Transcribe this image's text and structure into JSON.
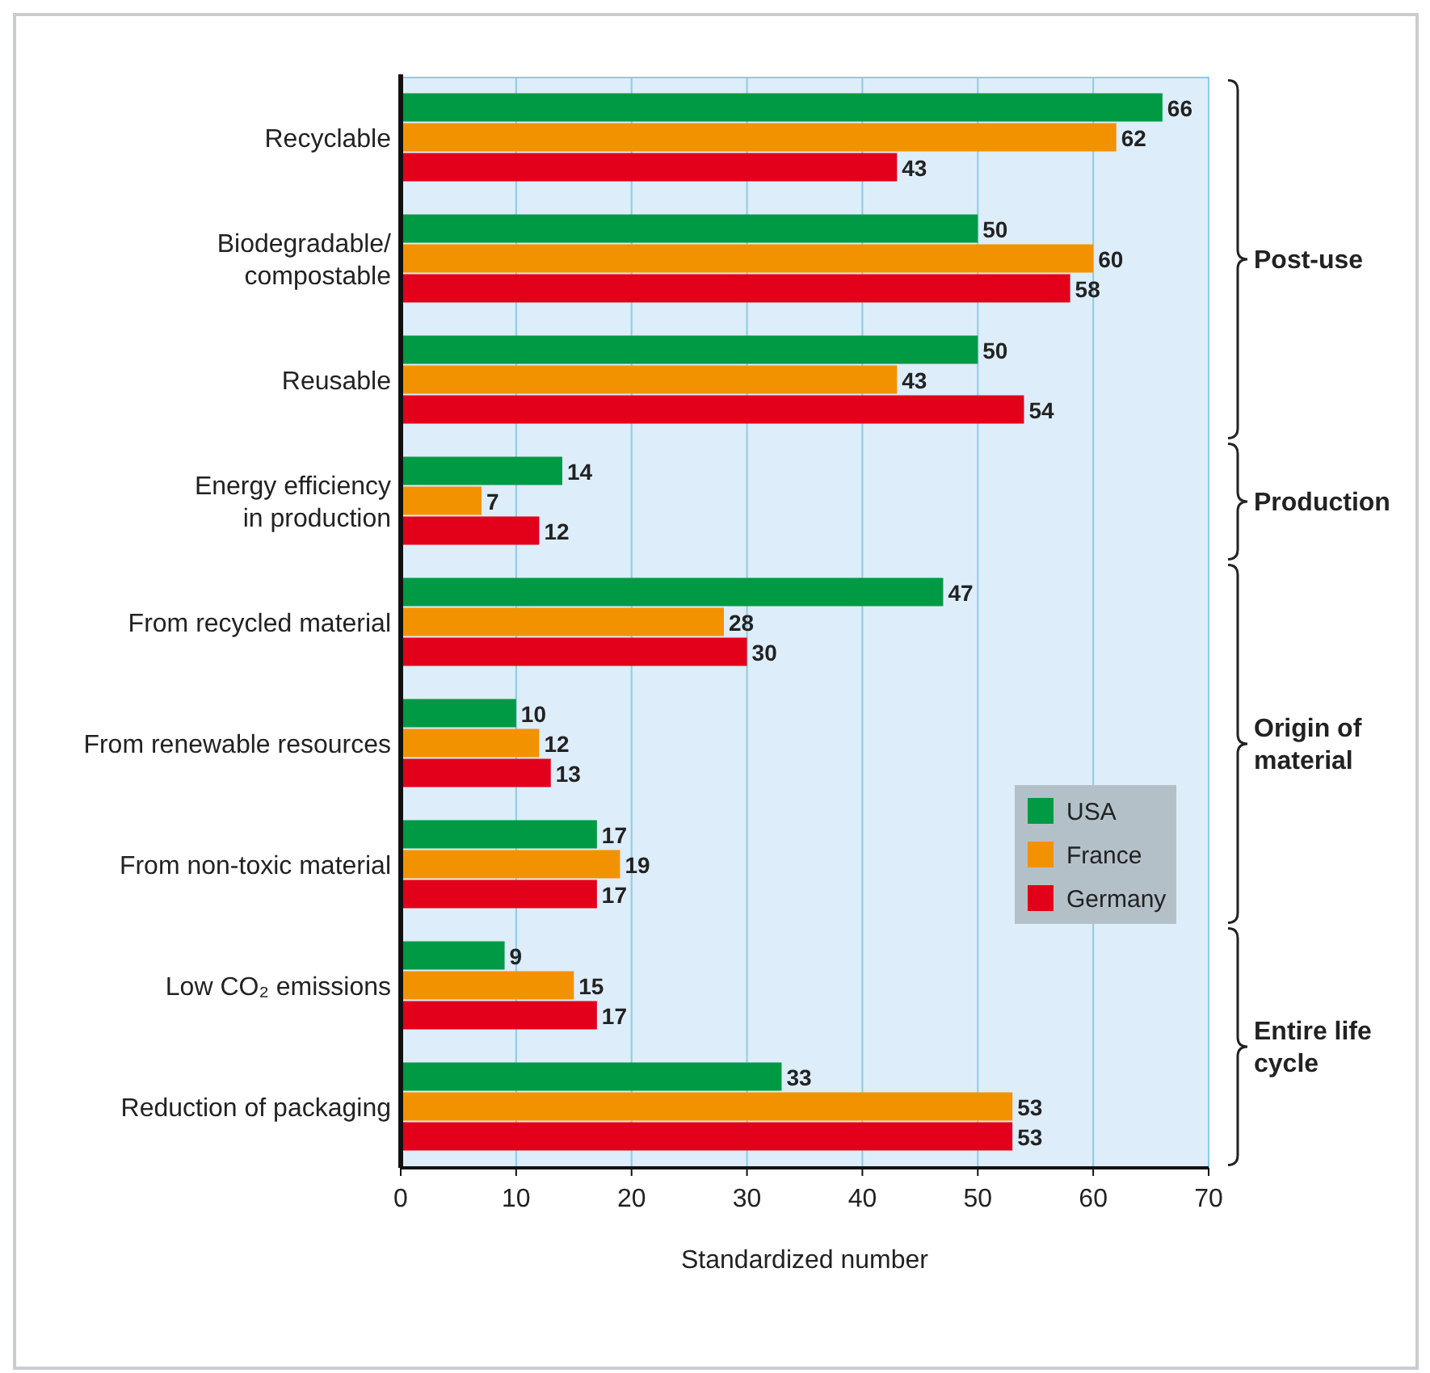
{
  "chart_data": {
    "type": "bar",
    "orientation": "horizontal",
    "xlabel": "Standardized number",
    "categories": [
      "Recyclable",
      "Biodegradable/\ncompostable",
      "Reusable",
      "Energy efficiency\nin production",
      "From recycled material",
      "From renewable resources",
      "From non-toxic material",
      "Low CO₂ emissions",
      "Reduction of packaging"
    ],
    "series": [
      {
        "name": "USA",
        "color": "#009a44",
        "values": [
          66,
          50,
          50,
          14,
          47,
          10,
          17,
          9,
          33
        ]
      },
      {
        "name": "France",
        "color": "#f39200",
        "values": [
          62,
          60,
          43,
          7,
          28,
          12,
          19,
          15,
          53
        ]
      },
      {
        "name": "Germany",
        "color": "#e2001a",
        "values": [
          43,
          58,
          54,
          12,
          30,
          13,
          17,
          17,
          53
        ]
      }
    ],
    "xlim": [
      0,
      70
    ],
    "xticks": [
      0,
      10,
      20,
      30,
      40,
      50,
      60,
      70
    ],
    "grid": "x",
    "legend": "bottom right",
    "data_labels": true,
    "annotations": [
      "Post-use",
      "Production",
      "Origin of\nmaterial",
      "Entire life\ncycle"
    ]
  }
}
